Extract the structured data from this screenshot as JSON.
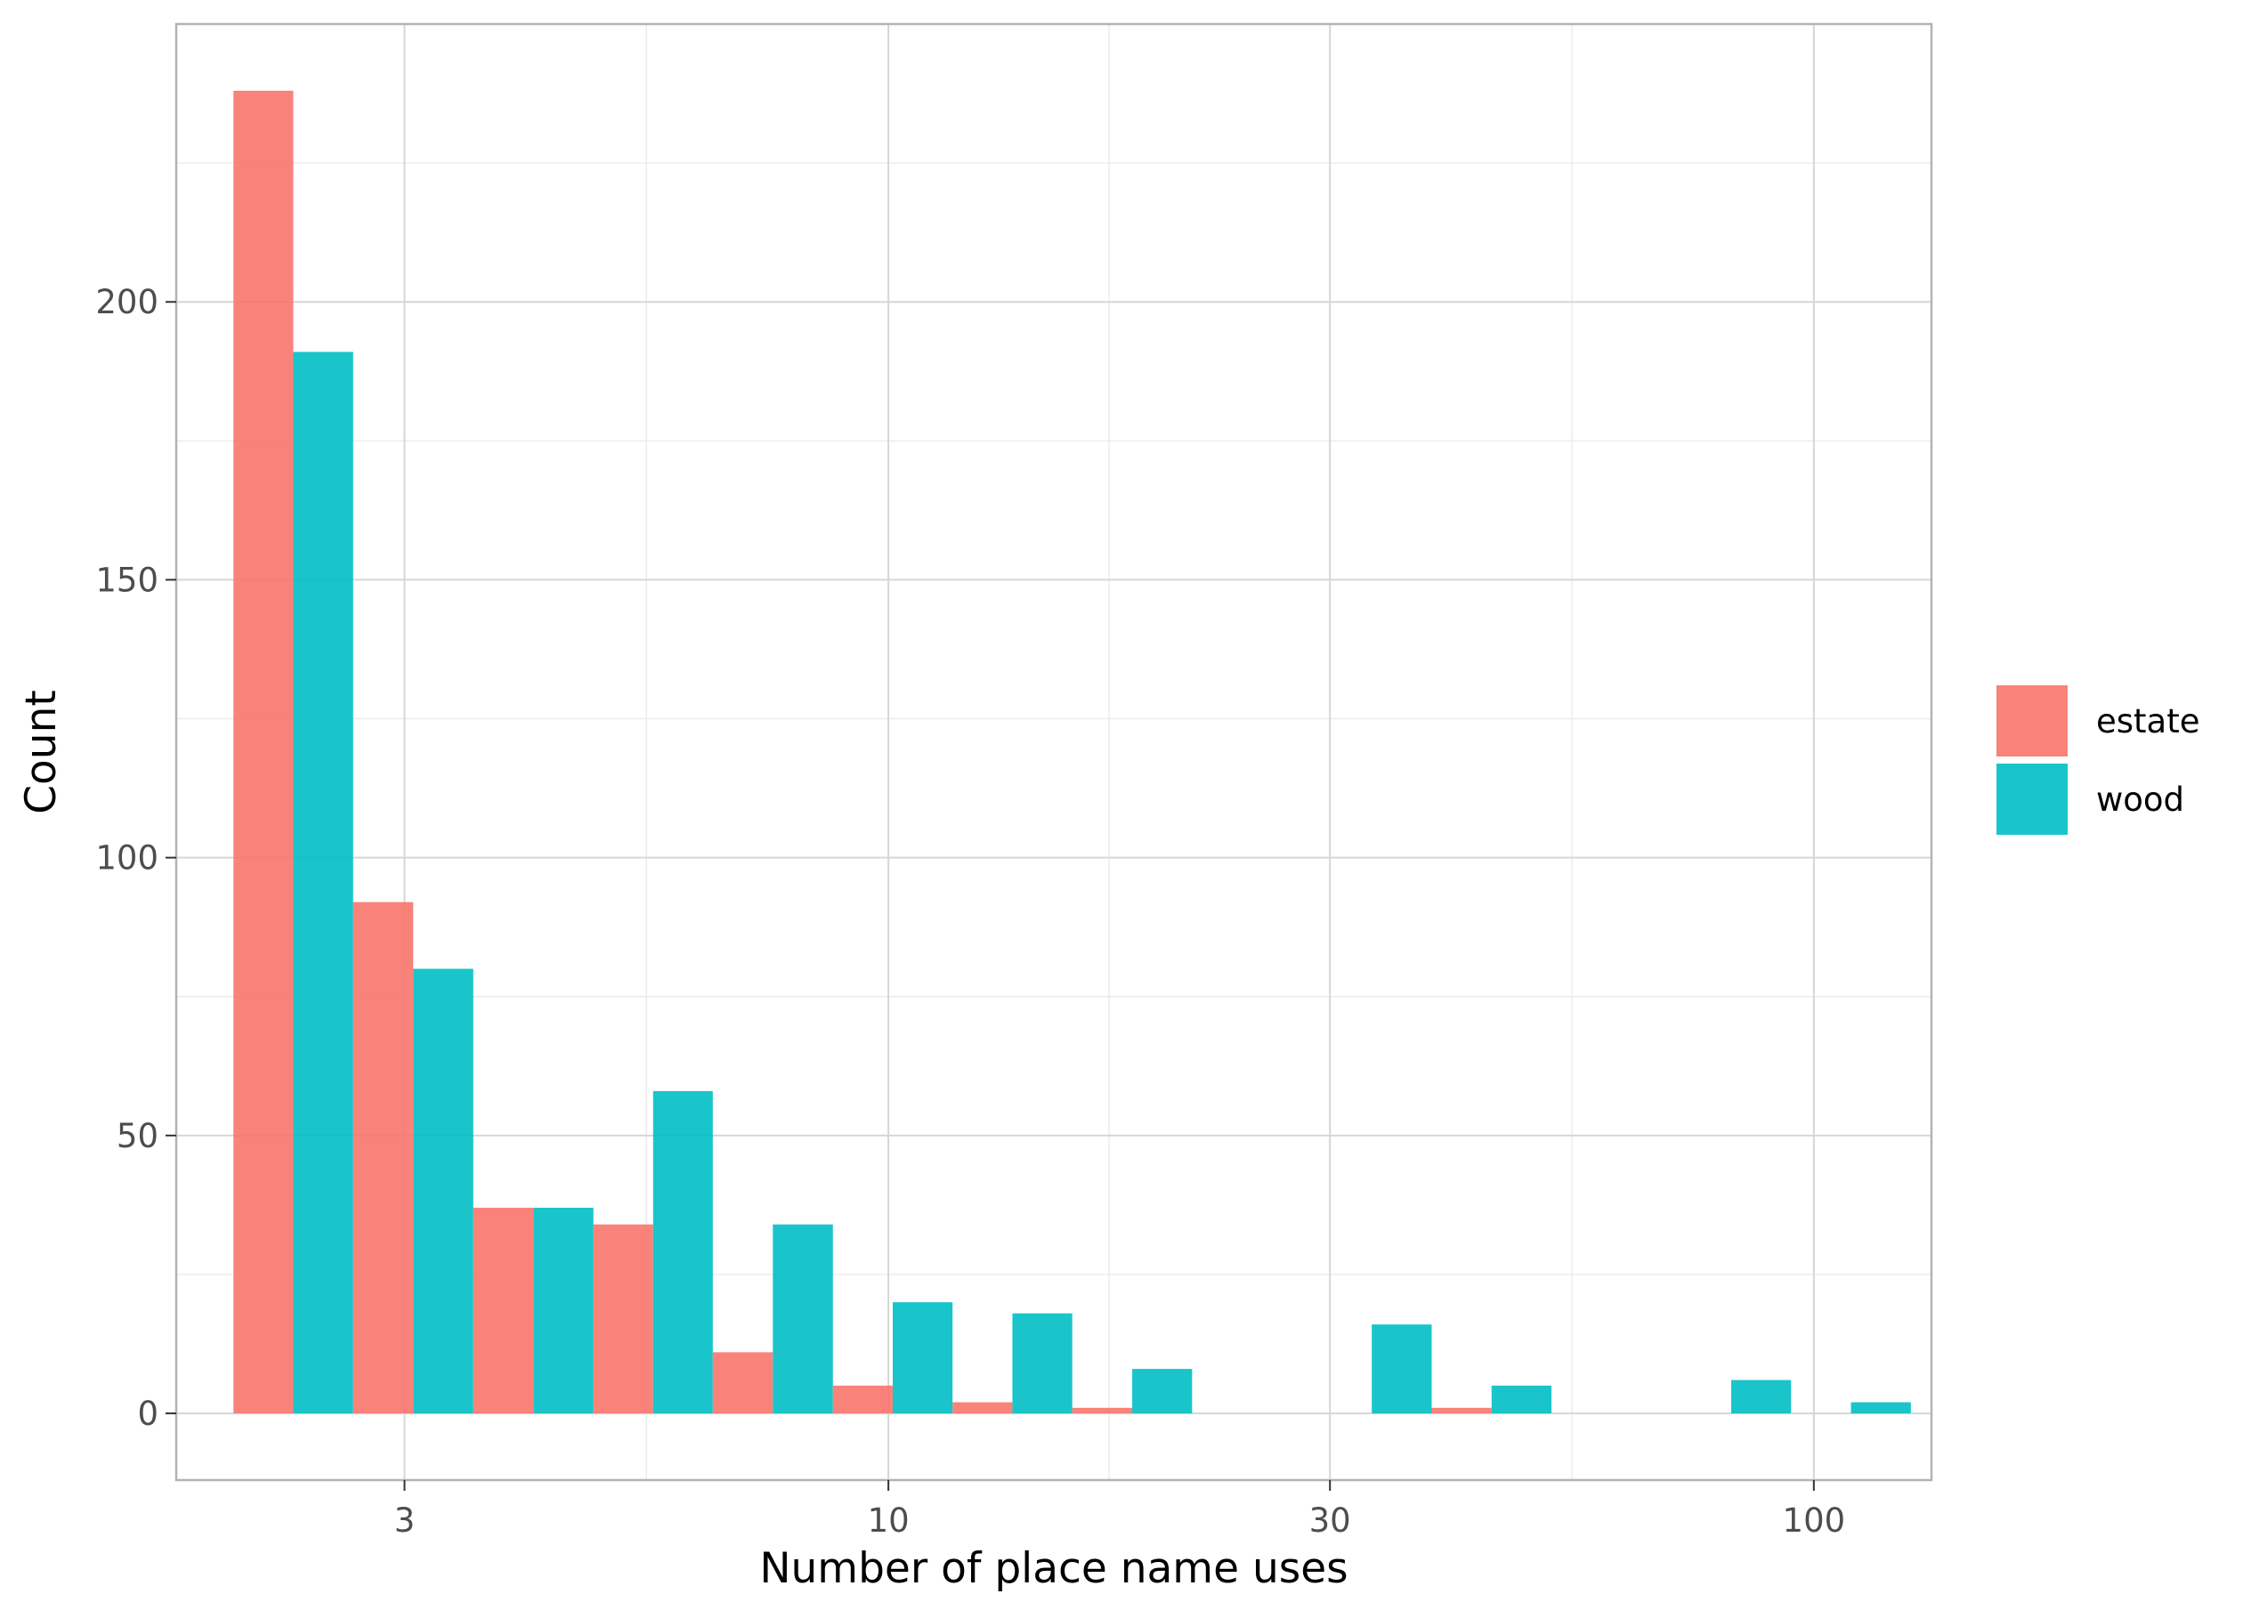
{
  "chart_data": {
    "type": "bar",
    "xlabel": "Number of place name uses",
    "ylabel": "Count",
    "x_scale": "log10",
    "x_range": [
      1.7,
      134
    ],
    "y_range": [
      -12,
      250
    ],
    "x_ticks": [
      3,
      10,
      30,
      100
    ],
    "x_tick_labels": [
      "3",
      "10",
      "30",
      "100"
    ],
    "y_ticks": [
      0,
      50,
      100,
      150,
      200
    ],
    "y_tick_labels": [
      "0",
      "50",
      "100",
      "150",
      "200"
    ],
    "grid": true,
    "legend_position": "right",
    "bin_edges": [
      1.96,
      2.64,
      3.56,
      4.8,
      6.46,
      8.71,
      11.73,
      15.8,
      21.29,
      28.68,
      38.64,
      52.06,
      70.14,
      94.49,
      127.3
    ],
    "series": [
      {
        "name": "estate",
        "color": "#F8766D",
        "values": [
          238,
          92,
          37,
          34,
          11,
          5,
          2,
          1,
          0,
          0,
          1,
          0,
          0,
          0
        ]
      },
      {
        "name": "wood",
        "color": "#00BFC4",
        "values": [
          191,
          80,
          37,
          58,
          34,
          20,
          18,
          8,
          0,
          16,
          5,
          0,
          6,
          2
        ]
      }
    ]
  }
}
